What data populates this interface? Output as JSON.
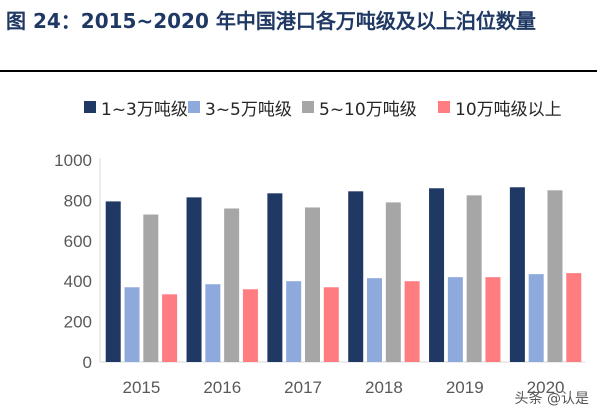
{
  "page": {
    "title": "图 24：2015~2020 年中国港口各万吨级及以上泊位数量",
    "watermark": "头条 @认是"
  },
  "colors": {
    "title": "#1F3864",
    "series": [
      "#1F3864",
      "#8EA9DB",
      "#A6A6A6",
      "#FF7C80"
    ],
    "axis": "#d9d9d9",
    "tick_text": "#595959"
  },
  "chart_data": {
    "type": "bar",
    "categories": [
      "2015",
      "2016",
      "2017",
      "2018",
      "2019",
      "2020"
    ],
    "series": [
      {
        "name": "1~3万吨级",
        "values": [
          795,
          815,
          835,
          845,
          860,
          865
        ]
      },
      {
        "name": "3~5万吨级",
        "values": [
          370,
          385,
          400,
          415,
          420,
          435
        ]
      },
      {
        "name": "5~10万吨级",
        "values": [
          730,
          760,
          765,
          790,
          825,
          850
        ]
      },
      {
        "name": "10万吨级以上",
        "values": [
          335,
          360,
          370,
          400,
          420,
          440
        ]
      }
    ],
    "ylim": [
      0,
      1000
    ],
    "yticks": [
      0,
      200,
      400,
      600,
      800,
      1000
    ],
    "xlabel": "",
    "ylabel": "",
    "legend": "top",
    "grid": false
  }
}
